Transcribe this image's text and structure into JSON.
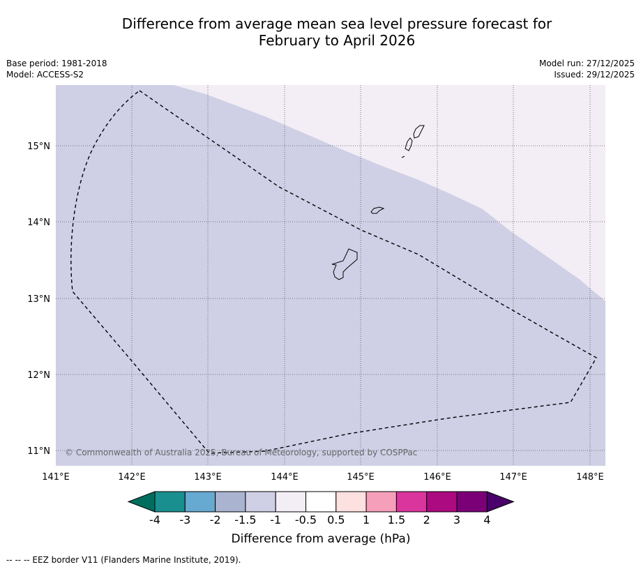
{
  "title_line1": "Difference from average mean sea level pressure forecast for",
  "title_line2": "February to April 2026",
  "base_period": "Base period: 1981-2018",
  "model": "Model: ACCESS-S2",
  "model_run": "Model run: 27/12/2025",
  "issued": "Issued: 29/12/2025",
  "copyright": "© Commonwealth of Australia 2025, Bureau of Meteorology, supported by COSPPac",
  "map": {
    "lon_labels": [
      "141°E",
      "142°E",
      "143°E",
      "144°E",
      "145°E",
      "146°E",
      "147°E",
      "148°E"
    ],
    "lat_labels": [
      "11°N",
      "12°N",
      "13°N",
      "14°N",
      "15°N"
    ]
  },
  "colorbar": {
    "tick_labels": [
      "-4",
      "-3",
      "-2",
      "-1.5",
      "-1",
      "-0.5",
      "0.5",
      "1",
      "1.5",
      "2",
      "3",
      "4"
    ],
    "colors": [
      "#1a8f8f",
      "#66a9d1",
      "#aab4d1",
      "#cfd0e6",
      "#f3edf5",
      "#ffffff",
      "#fde0e0",
      "#f59fba",
      "#d9359c",
      "#ab0a80",
      "#7b0078"
    ],
    "low_extend_color": "#006e5e",
    "high_extend_color": "#4a006b",
    "label": "Difference from average (hPa)"
  },
  "legend_text": "--  --  -- EEZ border V11 (Flanders Marine Institute, 2019)."
}
